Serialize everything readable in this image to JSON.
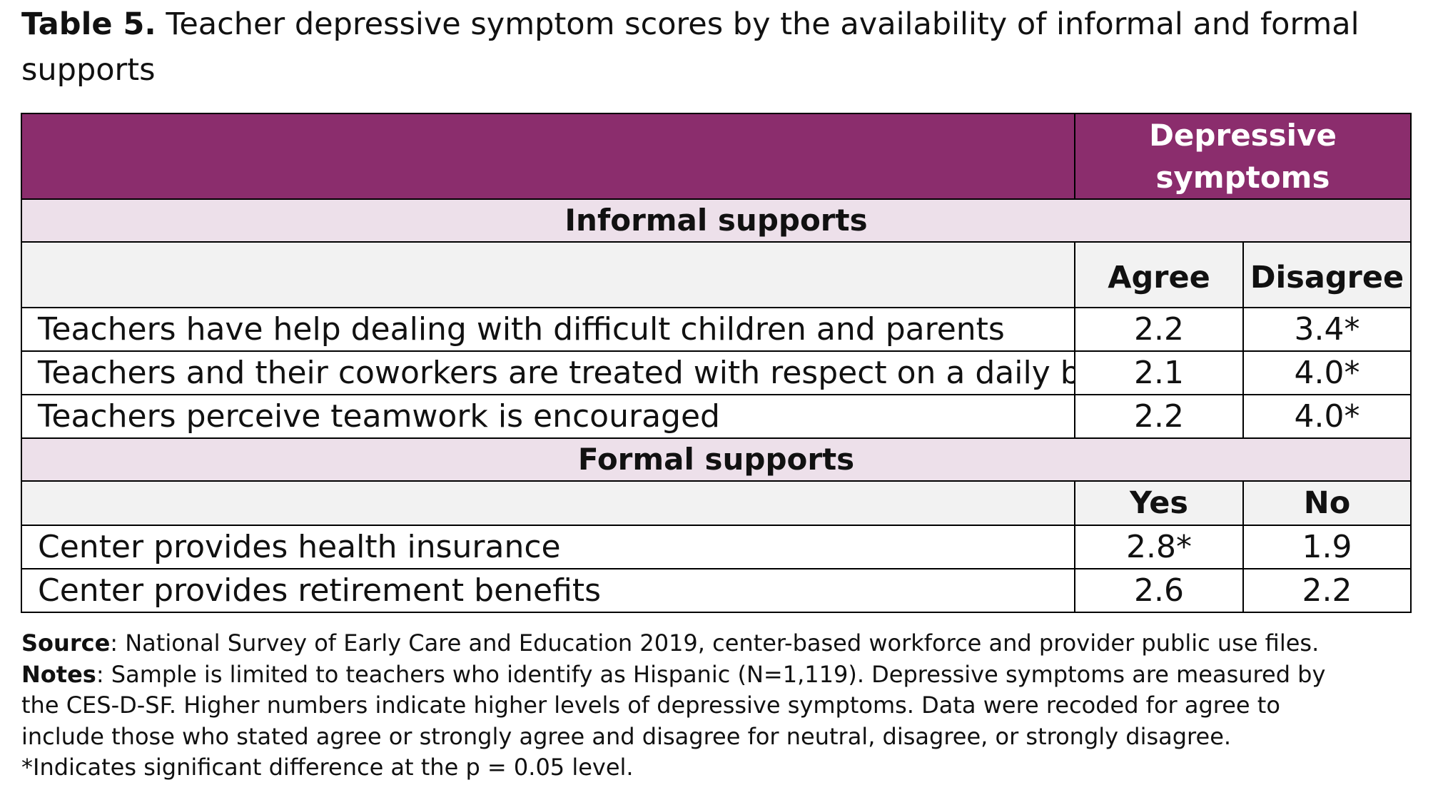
{
  "caption": {
    "label": "Table 5.",
    "text": "Teacher depressive symptom scores by the availability of informal and formal supports"
  },
  "table": {
    "header": "Depressive symptoms",
    "sections": [
      {
        "title": "Informal supports",
        "col_a": "Agree",
        "col_b": "Disagree",
        "rows": [
          {
            "label": "Teachers have help dealing with difficult children and parents",
            "a": "2.2",
            "b": "3.4*"
          },
          {
            "label": "Teachers and their coworkers are treated with respect on a daily basis",
            "a": "2.1",
            "b": "4.0*"
          },
          {
            "label": "Teachers perceive teamwork is encouraged",
            "a": "2.2",
            "b": "4.0*"
          }
        ]
      },
      {
        "title": "Formal supports",
        "col_a": "Yes",
        "col_b": "No",
        "rows": [
          {
            "label": "Center provides health insurance",
            "a": "2.8*",
            "b": "1.9"
          },
          {
            "label": "Center provides retirement benefits",
            "a": "2.6",
            "b": "2.2"
          }
        ]
      }
    ]
  },
  "notes": {
    "source_label": "Source",
    "source_text": ": National Survey of Early Care and Education 2019, center-based workforce and provider public use files.",
    "notes_label": "Notes",
    "notes_text": ": Sample is limited to teachers who identify as Hispanic (N=1,119). Depressive symptoms are measured by the CES-D-SF. Higher numbers indicate higher levels of depressive symptoms. Data were recoded for agree to include those who stated agree or strongly agree and disagree for neutral, disagree, or strongly disagree. *Indicates significant difference at the p = 0.05 level."
  },
  "colors": {
    "header_bg": "#8b2d6d",
    "section_bg": "#ede0ea",
    "subheader_bg": "#f2f2f2"
  }
}
